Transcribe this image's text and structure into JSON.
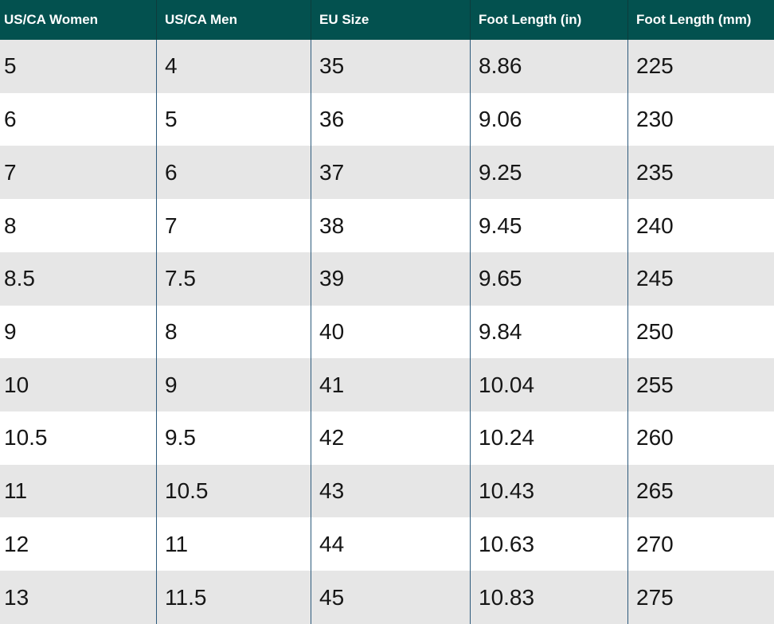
{
  "table": {
    "headers": [
      "US/CA Women",
      "US/CA Men",
      "EU Size",
      "Foot Length (in)",
      "Foot Length (mm)"
    ],
    "rows": [
      [
        "5",
        "4",
        "35",
        "8.86",
        "225"
      ],
      [
        "6",
        "5",
        "36",
        "9.06",
        "230"
      ],
      [
        "7",
        "6",
        "37",
        "9.25",
        "235"
      ],
      [
        "8",
        "7",
        "38",
        "9.45",
        "240"
      ],
      [
        "8.5",
        "7.5",
        "39",
        "9.65",
        "245"
      ],
      [
        "9",
        "8",
        "40",
        "9.84",
        "250"
      ],
      [
        "10",
        "9",
        "41",
        "10.04",
        "255"
      ],
      [
        "10.5",
        "9.5",
        "42",
        "10.24",
        "260"
      ],
      [
        "11",
        "10.5",
        "43",
        "10.43",
        "265"
      ],
      [
        "12",
        "11",
        "44",
        "10.63",
        "270"
      ],
      [
        "13",
        "11.5",
        "45",
        "10.83",
        "275"
      ]
    ]
  }
}
